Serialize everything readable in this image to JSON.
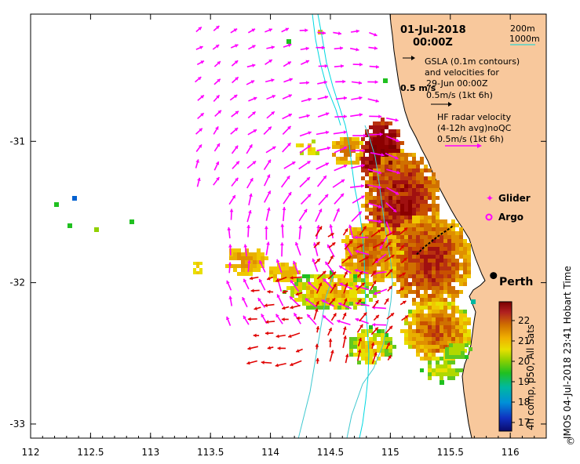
{
  "title": {
    "date": "01-Jul-2018",
    "time": "00:00Z"
  },
  "depth_legend": {
    "contour_200": "200m",
    "contour_1000": "1000m"
  },
  "gsla_legend": {
    "line1": "GSLA (0.1m contours)",
    "line2": "and velocities for",
    "line3": "29-Jun 00:00Z",
    "scale_bold": "0.5 m/s",
    "scale_text": "0.5m/s (1kt 6h)"
  },
  "hf_legend": {
    "line1": "HF radar velocity",
    "line2": "(4-12h avg)noQC",
    "line3": "0.5m/s (1kt 6h)"
  },
  "symbols": {
    "glider": "Glider",
    "argo": "Argo"
  },
  "place": {
    "city": "Perth"
  },
  "colorbar": {
    "label": "4h comp, p50, All Sats",
    "ticks": [
      "22",
      "21",
      "20",
      "19",
      "18",
      "17"
    ],
    "colors": [
      "#8b0000",
      "#b22222",
      "#cd5c00",
      "#e08a00",
      "#f0c000",
      "#e8e800",
      "#90d000",
      "#20c020",
      "#00b8a0",
      "#00a0d0",
      "#0060d0",
      "#1020b0",
      "#0a0a6a"
    ]
  },
  "credit": "IMOS 04-Jul-2018 23:41 Hobart Time",
  "axes": {
    "x_ticks": [
      "112",
      "112.5",
      "113",
      "113.5",
      "114",
      "114.5",
      "115",
      "115.5",
      "116"
    ],
    "y_ticks": [
      "-31",
      "-32",
      "-33"
    ]
  },
  "colors": {
    "land": "#f8c89c",
    "arrow_gsla": "#ff00ff",
    "arrow_hf": "#e00000",
    "isobath": "#00d8e0",
    "isobath_deep": "#40c8d0"
  },
  "map_data": {
    "lon_range": [
      112.0,
      116.3
    ],
    "lat_range": [
      -33.1,
      -30.1
    ],
    "perth": {
      "lon": 115.86,
      "lat": -31.95
    },
    "glider_track": [
      [
        115.22,
        -31.8
      ],
      [
        115.28,
        -31.75
      ],
      [
        115.34,
        -31.71
      ],
      [
        115.4,
        -31.67
      ],
      [
        115.47,
        -31.63
      ],
      [
        115.52,
        -31.6
      ]
    ]
  }
}
